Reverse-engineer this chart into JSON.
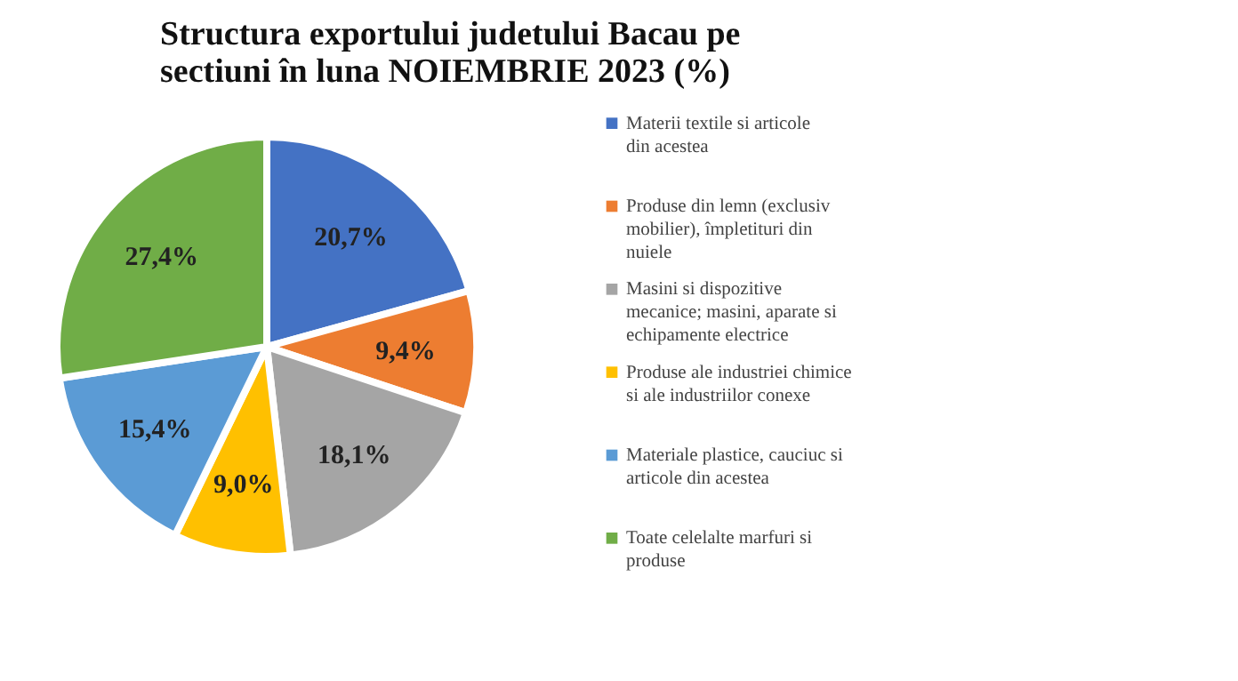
{
  "chart_data": {
    "type": "pie",
    "title": "Structura exportului judetului  Bacau pe sectiuni în luna NOIEMBRIE   2023 (%)",
    "categories": [
      "Materii textile si articole din acestea",
      "Produse din lemn (exclusiv mobilier), împletituri din nuiele",
      "Masini si dispozitive mecanice; masini, aparate si echipamente electrice",
      "Produse ale industriei chimice si ale industriilor conexe",
      "Materiale plastice, cauciuc si articole din acestea",
      "Toate celelalte marfuri si produse"
    ],
    "values": [
      20.7,
      9.4,
      18.1,
      9.0,
      15.4,
      27.4
    ],
    "value_labels": [
      "20,7%",
      "9,4%",
      "18,1%",
      "9,0%",
      "15,4%",
      "27,4%"
    ],
    "colors": [
      "#4472c4",
      "#ed7d31",
      "#a5a5a5",
      "#ffc000",
      "#5b9bd5",
      "#70ad47"
    ],
    "legend": "right"
  }
}
